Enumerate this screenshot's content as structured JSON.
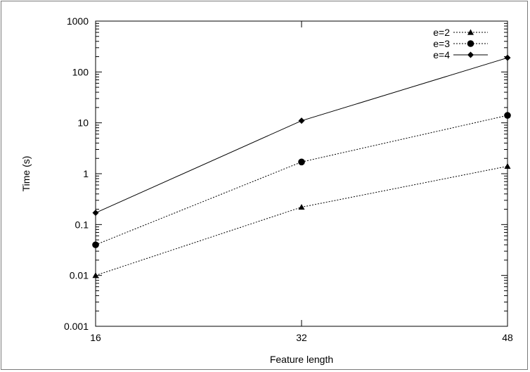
{
  "chart_data": {
    "type": "line",
    "title": "",
    "xlabel": "Feature length",
    "ylabel": "Time (s)",
    "x": [
      16,
      32,
      48
    ],
    "xlim": [
      16,
      48
    ],
    "ylim": [
      0.001,
      1000
    ],
    "y_scale": "log",
    "x_ticks": [
      "16",
      "32",
      "48"
    ],
    "y_ticks": [
      "0.001",
      "0.01",
      "0.1",
      "1",
      "10",
      "100",
      "1000"
    ],
    "y_tick_values": [
      0.001,
      0.01,
      0.1,
      1,
      10,
      100,
      1000
    ],
    "grid": false,
    "legend_position": "top-right",
    "series": [
      {
        "name": "e=2",
        "values": [
          0.01,
          0.22,
          1.4
        ],
        "marker": "triangle",
        "line_style": "dotted",
        "color": "#000000"
      },
      {
        "name": "e=3",
        "values": [
          0.04,
          1.7,
          14
        ],
        "marker": "circle",
        "line_style": "dotted",
        "color": "#000000"
      },
      {
        "name": "e=4",
        "values": [
          0.17,
          11,
          190
        ],
        "marker": "diamond",
        "line_style": "solid",
        "color": "#000000"
      }
    ]
  }
}
